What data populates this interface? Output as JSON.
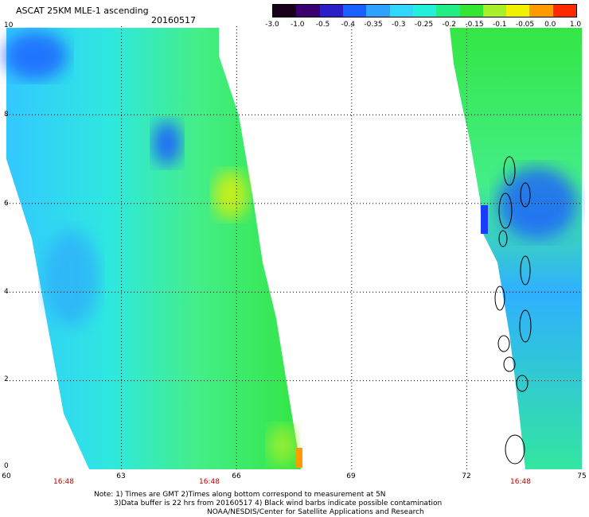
{
  "header": {
    "title": "ASCAT 25KM MLE-1 ascending",
    "date": "20160517"
  },
  "colorbar": {
    "labels": [
      "-3.0",
      "-1.0",
      "-0.5",
      "-0.4",
      "-0.35",
      "-0.3",
      "-0.25",
      "-0.2",
      "-0.15",
      "-0.1",
      "-0.05",
      "0.0",
      "1.0"
    ],
    "colors": [
      "#1a001a",
      "#3a0070",
      "#2b1fc8",
      "#1a5fff",
      "#2fa2ff",
      "#33d6ff",
      "#22f0d8",
      "#22ee88",
      "#33e633",
      "#aaf02a",
      "#f0f000",
      "#ff9a00",
      "#ff2a00"
    ]
  },
  "axes": {
    "y_labels": [
      "10",
      "8",
      "6",
      "4",
      "2",
      "0"
    ],
    "x_labels": [
      "60",
      "63",
      "66",
      "69",
      "72",
      "75"
    ],
    "time_labels": [
      "16:48",
      "16:48",
      "16:48"
    ]
  },
  "notes": {
    "line1": "Note: 1) Times are GMT 2)Times along bottom correspond to measurement at 5N",
    "line2": "3)Data buffer is 22 hrs from 20160517 4) Black wind barbs indicate possible contamination",
    "line3": "NOAA/NESDIS/Center for Satellite Applications and Research"
  },
  "map": {
    "lon_range": [
      60,
      75
    ],
    "lat_range": [
      0,
      10
    ],
    "grid_dotted": true,
    "swaths": 2,
    "islands": "Maldives outlines"
  }
}
